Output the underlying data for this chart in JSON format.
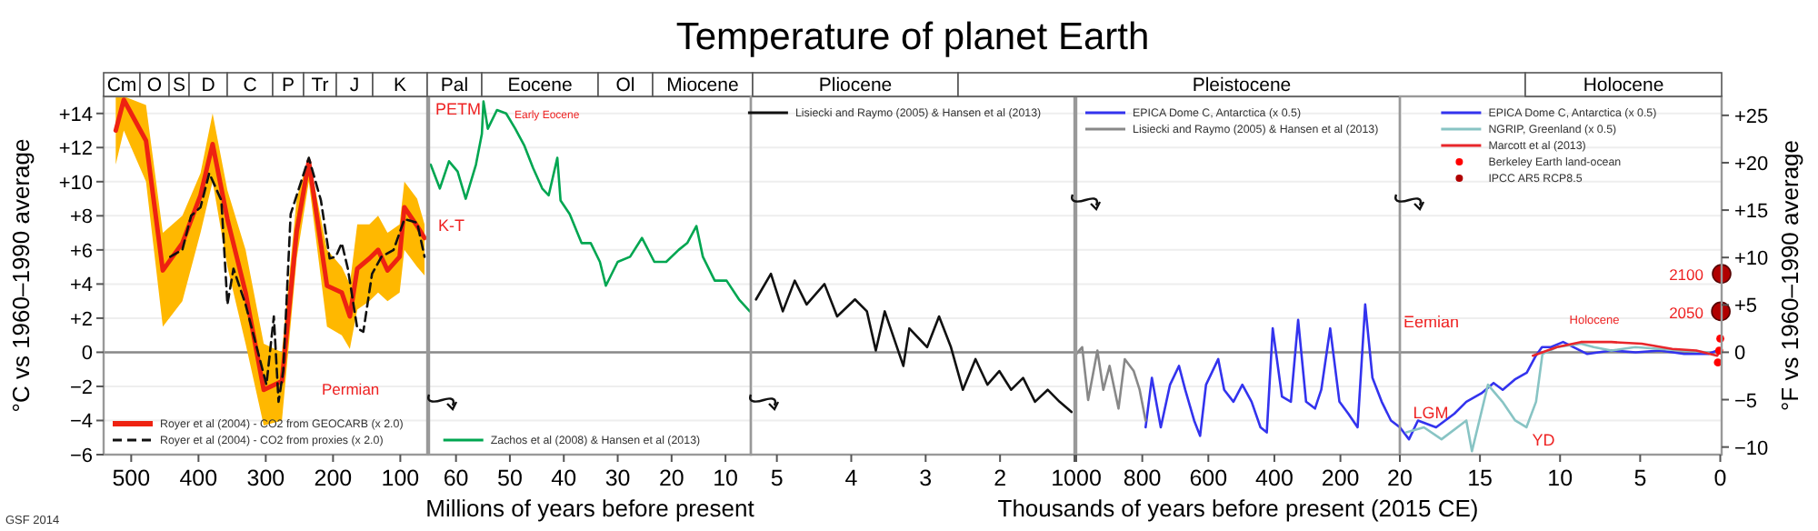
{
  "chart_data": [
    {
      "type": "line",
      "ylabel": "°C vs 1960–1990 average",
      "xlim": [
        541,
        60
      ],
      "xticks": [
        500,
        400,
        300,
        200,
        100
      ],
      "ylim": [
        -6,
        15
      ],
      "yticks": [
        {
          "value": -6,
          "label": "−6"
        },
        {
          "value": -4,
          "label": "−4"
        },
        {
          "value": -2,
          "label": "−2"
        },
        0,
        {
          "value": 2,
          "label": "+2"
        },
        {
          "value": 4,
          "label": "+4"
        },
        {
          "value": 6,
          "label": "+6"
        },
        {
          "value": 8,
          "label": "+8"
        },
        {
          "value": 10,
          "label": "+10"
        },
        {
          "value": 12,
          "label": "+12"
        },
        {
          "value": 14,
          "label": "+14"
        }
      ],
      "grid": "y",
      "legend": "bottom left",
      "ref_lines": [
        {
          "axis": "y",
          "value": 0,
          "color": "#888888"
        }
      ],
      "annotations": [
        "Cm",
        "O",
        "S",
        "D",
        "C",
        "P",
        "Tr",
        "J",
        "K",
        "Permian",
        "GSF 2014"
      ],
      "series": [
        {
          "name": "Royer et al (2004) - CO2 from GEOCARB (x 2.0)",
          "color": "#ee2211",
          "x": [
            523,
            511,
            478,
            453,
            424,
            397,
            379,
            357,
            330,
            303,
            276,
            254,
            236,
            209,
            187,
            175,
            164,
            146,
            133,
            119,
            101,
            94,
            75,
            64
          ],
          "values": [
            13.0,
            14.8,
            12.4,
            4.8,
            6.4,
            9.2,
            12.2,
            7.8,
            3.5,
            -2.2,
            -1.7,
            7.1,
            11.2,
            3.9,
            3.5,
            2.1,
            4.9,
            5.5,
            6.0,
            4.8,
            5.6,
            8.5,
            7.4,
            6.7
          ],
          "upper": [
            15,
            15,
            14.5,
            7,
            8,
            10.5,
            14,
            9.5,
            6,
            0.5,
            0,
            9,
            11.5,
            6,
            5,
            4,
            7.5,
            7.5,
            8,
            7,
            7.5,
            10,
            9,
            7.5
          ],
          "lower": [
            11,
            13,
            10,
            1.5,
            3,
            7,
            10,
            5,
            0.5,
            -4.3,
            -4,
            5.5,
            10,
            1.5,
            1,
            0.2,
            2.5,
            3,
            3.5,
            3,
            3.5,
            6,
            5,
            4.5
          ]
        },
        {
          "name": "Royer et al (2004) - CO2 from proxies (x 2.0)",
          "color": "#111111",
          "line_style": "dashed",
          "x": [
            442,
            424,
            411,
            397,
            384,
            366,
            357,
            348,
            330,
            299,
            288,
            281,
            274,
            263,
            236,
            218,
            205,
            196,
            187,
            178,
            164,
            155,
            142,
            128,
            110,
            94,
            75,
            64
          ],
          "values": [
            5.6,
            6.0,
            8.0,
            8.5,
            10.5,
            8.9,
            2.8,
            4.9,
            2.8,
            -1.9,
            2.1,
            -2.9,
            -1.1,
            8.1,
            11.4,
            8.9,
            5.5,
            5.6,
            6.4,
            4.9,
            1.4,
            1.2,
            4.6,
            5.6,
            6.0,
            7.8,
            7.6,
            5.6
          ]
        }
      ]
    },
    {
      "type": "line",
      "xlabel": "Millions of years before present",
      "xlim": [
        65,
        5.3
      ],
      "xticks": [
        60,
        50,
        40,
        30,
        20,
        10
      ],
      "ylim": [
        -6,
        15
      ],
      "yticks": [
        -6,
        -4,
        -2,
        0,
        2,
        4,
        6,
        8,
        10,
        12,
        14
      ],
      "tick_labels": "x",
      "grid": "y",
      "legend": "bottom",
      "ref_lines": [
        {
          "axis": "y",
          "value": 0,
          "color": "#888888"
        }
      ],
      "annotations": [
        "Pal",
        "Eocene",
        "Ol",
        "Miocene",
        "PETM",
        "Early Eocene",
        "K-T"
      ],
      "series": [
        {
          "name": "Zachos et al (2008) & Hansen et al (2013)",
          "color": "#00a651",
          "x": [
            64.7,
            63.0,
            61.3,
            59.7,
            58.2,
            56.3,
            55.2,
            54.9,
            54.1,
            52.4,
            50.7,
            49.0,
            47.3,
            45.7,
            44.0,
            42.8,
            41.2,
            40.6,
            38.9,
            36.7,
            35.0,
            33.3,
            32.2,
            30.0,
            27.7,
            25.5,
            23.2,
            21.0,
            18.7,
            17.1,
            15.4,
            14.2,
            12.0,
            9.8,
            7.5,
            5.5
          ],
          "values": [
            11.0,
            9.6,
            11.2,
            10.6,
            9.0,
            11.0,
            12.8,
            14.7,
            13.1,
            14.2,
            14.0,
            13.1,
            12.1,
            10.8,
            9.6,
            9.2,
            11.4,
            8.9,
            8.1,
            6.4,
            6.4,
            5.3,
            3.9,
            5.3,
            5.6,
            6.7,
            5.3,
            5.3,
            6.0,
            6.4,
            7.4,
            5.6,
            4.2,
            4.2,
            3.1,
            2.4
          ]
        }
      ]
    },
    {
      "type": "line",
      "title": "Temperature of planet Earth",
      "xlim": [
        5.35,
        1
      ],
      "xticks": [
        5,
        4,
        3,
        2,
        {
          "value": 1,
          "label": null
        }
      ],
      "annotations": [
        "Pliocene"
      ],
      "ylim": [
        -6,
        15
      ],
      "yticks": [
        -6,
        -4,
        -2,
        0,
        2,
        4,
        6,
        8,
        10,
        12,
        14
      ],
      "tick_labels": "x",
      "grid": "y",
      "legend": "top",
      "ref_lines": [
        {
          "axis": "y",
          "value": 0,
          "color": "#888888"
        }
      ],
      "series": [
        {
          "name": "Lisiecki and Raymo (2005) & Hansen et al (2013)",
          "color": "#111111",
          "x": [
            5.28,
            5.08,
            4.92,
            4.76,
            4.6,
            4.36,
            4.19,
            3.95,
            3.79,
            3.67,
            3.55,
            3.3,
            3.22,
            2.98,
            2.82,
            2.66,
            2.5,
            2.33,
            2.17,
            2.01,
            1.85,
            1.69,
            1.53,
            1.36,
            1.2,
            1.04
          ],
          "values": [
            3.1,
            4.6,
            2.4,
            4.2,
            2.8,
            4.0,
            2.1,
            3.1,
            2.4,
            0.1,
            2.4,
            -0.8,
            1.4,
            0.3,
            2.1,
            0.3,
            -2.2,
            -0.4,
            -1.9,
            -1.1,
            -2.2,
            -1.5,
            -2.9,
            -2.2,
            -2.9,
            -3.5
          ]
        }
      ]
    },
    {
      "type": "line",
      "xlabel": "Thousands of years before present (2015 CE)",
      "xlim": [
        1000,
        20
      ],
      "xticks": [
        1000,
        800,
        600,
        400,
        200,
        20
      ],
      "ylim": [
        -6,
        15
      ],
      "yticks": [
        -6,
        -4,
        -2,
        0,
        2,
        4,
        6,
        8,
        10,
        12,
        14
      ],
      "tick_labels": "x",
      "grid": "y",
      "legend": "top left",
      "ref_lines": [
        {
          "axis": "y",
          "value": 0,
          "color": "#888888"
        }
      ],
      "annotations": [
        "Pleistocene",
        "Eemian"
      ],
      "series": [
        {
          "name": "EPICA Dome C, Antarctica (x 0.5)",
          "color": "#3333ee",
          "x": [
            790,
            771,
            744,
            716,
            689,
            670,
            643,
            625,
            607,
            570,
            552,
            524,
            497,
            469,
            442,
            423,
            405,
            377,
            350,
            328,
            304,
            277,
            258,
            231,
            203,
            176,
            148,
            125,
            103,
            75,
            47,
            20
          ],
          "values": [
            -4.4,
            -1.5,
            -4.4,
            -1.9,
            -0.8,
            -2.2,
            -4.0,
            -4.9,
            -1.9,
            -0.4,
            -2.2,
            -2.9,
            -1.9,
            -2.9,
            -4.4,
            -4.7,
            1.4,
            -2.6,
            -2.9,
            1.9,
            -2.9,
            -3.3,
            -2.2,
            1.4,
            -2.9,
            -3.6,
            -4.4,
            2.8,
            -1.5,
            -2.9,
            -4.0,
            -4.4
          ]
        },
        {
          "name": "Lisiecki and Raymo (2005) & Hansen et al (2013)",
          "color": "#888888",
          "x": [
            1000,
            982,
            964,
            936,
            918,
            899,
            872,
            853,
            826,
            808,
            790
          ],
          "values": [
            -0.1,
            0.3,
            -2.8,
            0.1,
            -2.2,
            -0.8,
            -3.3,
            -0.4,
            -1.1,
            -2.2,
            -4.0
          ]
        }
      ]
    },
    {
      "type": "line",
      "y2label": "°F vs 1960–1990 average",
      "xlim": [
        20,
        -0.085
      ],
      "xticks": [
        {
          "value": 20,
          "label": null
        },
        15,
        10,
        5,
        0
      ],
      "ylim": [
        -6,
        15
      ],
      "yticks": [
        -6,
        -4,
        -2,
        0,
        2,
        4,
        6,
        8,
        10,
        12,
        14
      ],
      "y2lim": [
        -10.8,
        27
      ],
      "y2ticks": [
        {
          "value": -10,
          "label": "−10"
        },
        {
          "value": -5,
          "label": "−5"
        },
        {
          "value": 0,
          "label": "0"
        },
        {
          "value": 5,
          "label": "+5"
        },
        {
          "value": 10,
          "label": "+10"
        },
        {
          "value": 15,
          "label": "+15"
        },
        {
          "value": 20,
          "label": "+20"
        },
        {
          "value": 25,
          "label": "+25"
        }
      ],
      "tick_labels": "x",
      "grid": "y",
      "legend": "top",
      "ref_lines": [
        {
          "axis": "y",
          "value": 0,
          "color": "#888888"
        }
      ],
      "annotations": [
        "Holocene",
        "LGM",
        "YD",
        "Holocene",
        "2050",
        "2100"
      ],
      "series": [
        {
          "name": "EPICA Dome C, Antarctica (x 0.5)",
          "color": "#3333ee",
          "x": [
            20,
            19.43,
            18.87,
            17.74,
            16.6,
            15.85,
            14.9,
            14.15,
            13.58,
            12.83,
            12.08,
            11.51,
            11.13,
            10.57,
            9.81,
            8.3,
            6.79,
            5.28,
            3.77,
            2.26,
            0.75,
            0.19
          ],
          "values": [
            -4.4,
            -5.1,
            -4.0,
            -4.4,
            -3.6,
            -2.9,
            -2.4,
            -1.8,
            -2.2,
            -1.6,
            -1.2,
            -0.2,
            0.3,
            0.3,
            0.6,
            -0.1,
            0.1,
            0,
            0.1,
            -0.1,
            -0.1,
            0.1
          ]
        },
        {
          "name": "NGRIP, Greenland (x 0.5)",
          "color": "#88c4c4",
          "x": [
            19.6,
            18.5,
            17.4,
            15.85,
            15.5,
            14.5,
            13.6,
            12.8,
            12.1,
            11.5,
            11.1,
            10.2,
            8.7,
            7.9,
            6.8,
            5.3,
            3.8,
            2.3,
            0.75
          ],
          "values": [
            -4.7,
            -4.4,
            -5.1,
            -4.0,
            -5.8,
            -1.9,
            -2.9,
            -4.0,
            -4.4,
            -2.9,
            -0.1,
            0.3,
            0.5,
            0.3,
            0.1,
            0.3,
            0.2,
            0.1,
            0
          ]
        },
        {
          "name": "Marcott et al (2013)",
          "color": "#e8262b",
          "x": [
            11.7,
            10.2,
            8.7,
            6.8,
            4.9,
            3.0,
            1.5,
            0.19,
            0.1
          ],
          "values": [
            -0.2,
            0.3,
            0.6,
            0.6,
            0.5,
            0.2,
            0.1,
            -0.2,
            0
          ]
        },
        {
          "type": "scatter",
          "name": "Berkeley Earth land-ocean",
          "color": "#ff0000",
          "marker": "circle",
          "x": [
            0.15,
            0.07,
            0
          ],
          "values": [
            -0.6,
            0.1,
            0.8
          ]
        },
        {
          "type": "scatter",
          "name": "IPCC AR5 RCP8.5",
          "color": "#b00000",
          "marker": "circle",
          "x": [
            -0.035,
            -0.085
          ],
          "values": [
            2.4,
            4.6
          ]
        }
      ]
    }
  ]
}
